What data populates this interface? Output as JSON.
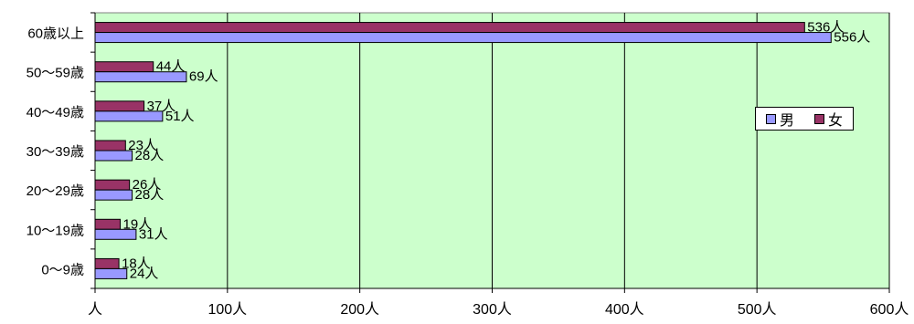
{
  "chart_data": {
    "type": "bar",
    "orientation": "horizontal",
    "categories": [
      "60歳以上",
      "50～59歳",
      "40～49歳",
      "30～39歳",
      "20～29歳",
      "10～19歳",
      "0～9歳"
    ],
    "series": [
      {
        "name": "女",
        "color": "#993366",
        "values": [
          536,
          44,
          37,
          23,
          26,
          19,
          18
        ],
        "labels": [
          "536人",
          "44人",
          "37人",
          "23人",
          "26人",
          "19人",
          "18人"
        ]
      },
      {
        "name": "男",
        "color": "#9999FF",
        "values": [
          556,
          69,
          51,
          28,
          28,
          31,
          24
        ],
        "labels": [
          "556人",
          "69人",
          "51人",
          "28人",
          "28人",
          "31人",
          "24人"
        ]
      }
    ],
    "x_ticks": [
      {
        "value": 0,
        "label": "人"
      },
      {
        "value": 100,
        "label": "100人"
      },
      {
        "value": 200,
        "label": "200人"
      },
      {
        "value": 300,
        "label": "300人"
      },
      {
        "value": 400,
        "label": "400人"
      },
      {
        "value": 500,
        "label": "500人"
      },
      {
        "value": 600,
        "label": "600人"
      }
    ],
    "xlim": [
      0,
      600
    ],
    "grid": "vertical",
    "legend": {
      "placement": "right",
      "items": [
        "男",
        "女"
      ]
    },
    "plot_background": "#CCFFCC"
  }
}
